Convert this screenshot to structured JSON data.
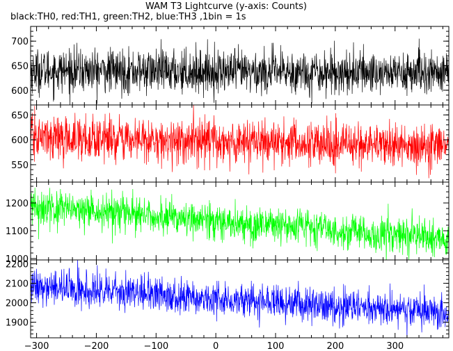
{
  "chart_data": {
    "type": "line",
    "title": "WAM T3 Lightcurve (y-axis: Counts)",
    "subtitle": "black:TH0, red:TH1, green:TH2, blue:TH3 ,1bin = 1s",
    "xlabel": "",
    "x_range": [
      -310,
      390
    ],
    "x_ticks": [
      -300,
      -200,
      -100,
      0,
      100,
      200,
      300
    ],
    "x_tick_labels": [
      "−300",
      "−200",
      "−100",
      "0",
      "100",
      "200",
      "300"
    ],
    "bin_seconds": 1,
    "panels": [
      {
        "series_name": "TH0",
        "color": "#000000",
        "ylim": [
          570,
          730
        ],
        "y_ticks": [
          600,
          650,
          700
        ],
        "y_tick_labels": [
          "600",
          "650",
          "700"
        ],
        "trend": [
          [
            -310,
            640
          ],
          [
            390,
            635
          ]
        ],
        "noise_std": 22
      },
      {
        "series_name": "TH1",
        "color": "#ff0000",
        "ylim": [
          515,
          670
        ],
        "y_ticks": [
          550,
          600,
          650
        ],
        "y_tick_labels": [
          "550",
          "600",
          "650"
        ],
        "trend": [
          [
            -310,
            605
          ],
          [
            390,
            585
          ]
        ],
        "noise_std": 22
      },
      {
        "series_name": "TH2",
        "color": "#00ff00",
        "ylim": [
          995,
          1275
        ],
        "y_ticks": [
          1000,
          1100,
          1200
        ],
        "y_tick_labels": [
          "1000",
          "1100",
          "1200"
        ],
        "trend": [
          [
            -310,
            1185
          ],
          [
            390,
            1070
          ]
        ],
        "noise_std": 32
      },
      {
        "series_name": "TH3",
        "color": "#0000ff",
        "ylim": [
          1820,
          2220
        ],
        "y_ticks": [
          1900,
          2000,
          2100,
          2200
        ],
        "y_tick_labels": [
          "1900",
          "2000",
          "2100",
          "2200"
        ],
        "trend": [
          [
            -310,
            2080
          ],
          [
            390,
            1950
          ]
        ],
        "noise_std": 45
      }
    ]
  }
}
